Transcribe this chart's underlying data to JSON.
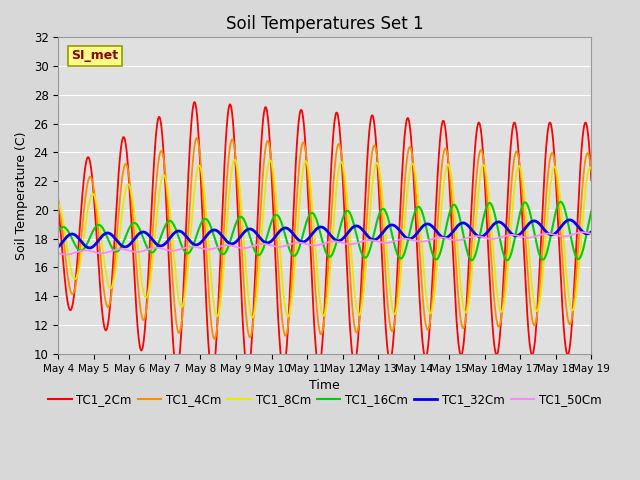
{
  "title": "Soil Temperatures Set 1",
  "xlabel": "Time",
  "ylabel": "Soil Temperature (C)",
  "ylim": [
    10,
    32
  ],
  "annotation": "SI_met",
  "fig_bg": "#d8d8d8",
  "plot_bg": "#e0e0e0",
  "legend_entries": [
    "TC1_2Cm",
    "TC1_4Cm",
    "TC1_8Cm",
    "TC1_16Cm",
    "TC1_32Cm",
    "TC1_50Cm"
  ],
  "line_colors": [
    "#ff0000",
    "#ff8c00",
    "#e8e800",
    "#00cc00",
    "#0000ee",
    "#ff88ff"
  ],
  "line_widths": [
    1.3,
    1.3,
    1.3,
    1.5,
    2.0,
    1.3
  ],
  "xtick_labels": [
    "May 4",
    "May 5",
    "May 6",
    "May 7",
    "May 8",
    "May 9",
    "May 10",
    "May 11",
    "May 12",
    "May 13",
    "May 14",
    "May 15",
    "May 16",
    "May 17",
    "May 18",
    "May 19"
  ],
  "ytick_values": [
    10,
    12,
    14,
    16,
    18,
    20,
    22,
    24,
    26,
    28,
    30,
    32
  ],
  "grid_color": "#ffffff",
  "title_fontsize": 12
}
